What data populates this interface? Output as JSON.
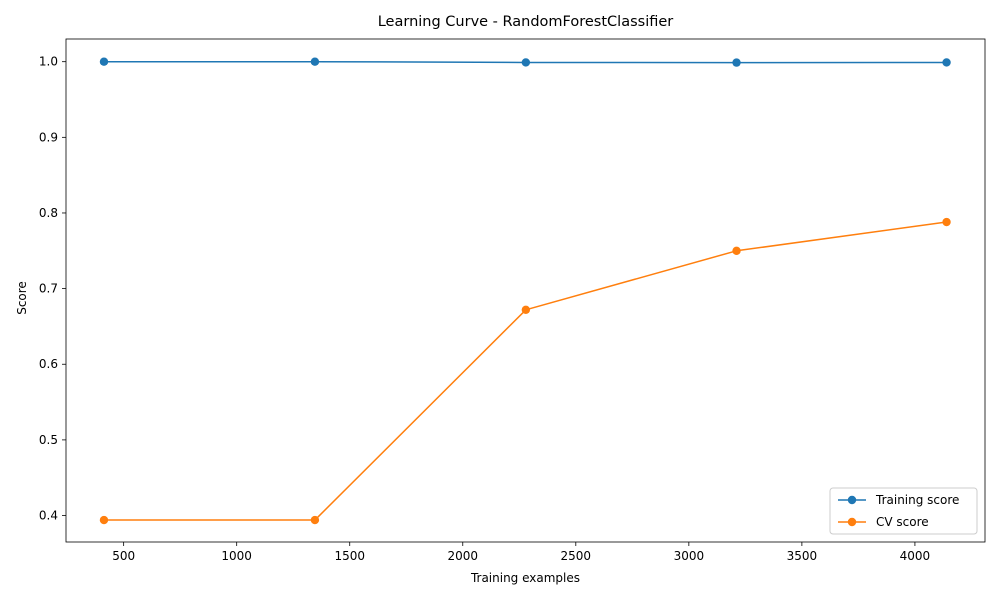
{
  "chart_data": {
    "type": "line",
    "title": "Learning Curve - RandomForestClassifier",
    "xlabel": "Training examples",
    "ylabel": "Score",
    "xlim": [
      245,
      4310
    ],
    "ylim": [
      0.365,
      1.03
    ],
    "x_ticks": [
      500,
      1000,
      1500,
      2000,
      2500,
      3000,
      3500,
      4000
    ],
    "y_ticks": [
      0.4,
      0.5,
      0.6,
      0.7,
      0.8,
      0.9,
      1.0
    ],
    "x_tick_labels": [
      "500",
      "1000",
      "1500",
      "2000",
      "2500",
      "3000",
      "3500",
      "4000"
    ],
    "y_tick_labels": [
      "0.4",
      "0.5",
      "0.6",
      "0.7",
      "0.8",
      "0.9",
      "1.0"
    ],
    "grid": false,
    "legend_position": "lower-right",
    "x": [
      413,
      1346,
      2279,
      3211,
      4140
    ],
    "series": [
      {
        "name": "Training score",
        "color": "#1f77b4",
        "marker": "circle",
        "values": [
          1.0,
          1.0,
          0.999,
          0.9988,
          0.999
        ]
      },
      {
        "name": "CV score",
        "color": "#ff7f0e",
        "marker": "circle",
        "values": [
          0.394,
          0.394,
          0.672,
          0.75,
          0.788
        ]
      }
    ]
  }
}
